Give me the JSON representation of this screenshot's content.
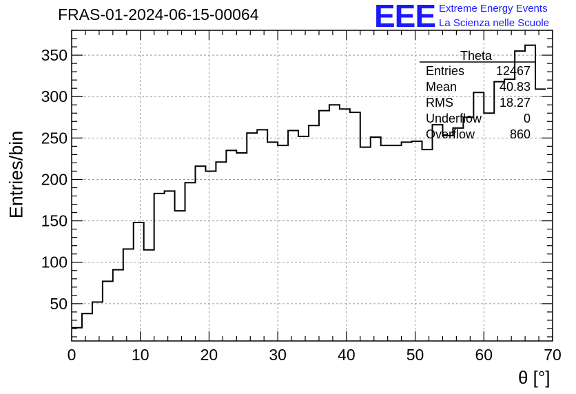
{
  "title": "FRAS-01-2024-06-15-00064",
  "logo": {
    "mark": "EEE",
    "line1": "Extreme Energy Events",
    "line2": "La Scienza nelle Scuole",
    "color": "#1a1aff"
  },
  "stats": {
    "title": "Theta",
    "rows": [
      {
        "name": "Entries",
        "value": "12467"
      },
      {
        "name": "Mean",
        "value": "40.83"
      },
      {
        "name": "RMS",
        "value": "18.27"
      },
      {
        "name": "Underflow",
        "value": "0"
      },
      {
        "name": "Overflow",
        "value": "860"
      }
    ]
  },
  "chart_data": {
    "type": "bar",
    "style": "step-histogram",
    "xlabel": "θ [°]",
    "ylabel": "Entries/bin",
    "xlim": [
      0,
      70
    ],
    "ylim": [
      5,
      380
    ],
    "bin_width": 1.5,
    "grid": true,
    "xticks": [
      "0",
      "10",
      "20",
      "30",
      "40",
      "50",
      "60",
      "70"
    ],
    "yticks": [
      "50",
      "100",
      "150",
      "200",
      "250",
      "300",
      "350"
    ],
    "values": [
      21,
      38,
      52,
      77,
      91,
      116,
      148,
      115,
      183,
      186,
      162,
      196,
      216,
      210,
      221,
      235,
      232,
      256,
      260,
      245,
      241,
      259,
      252,
      265,
      283,
      290,
      285,
      281,
      239,
      251,
      241,
      241,
      245,
      246,
      236,
      266,
      253,
      262,
      275,
      305,
      280,
      318,
      321,
      355,
      362,
      309
    ]
  }
}
